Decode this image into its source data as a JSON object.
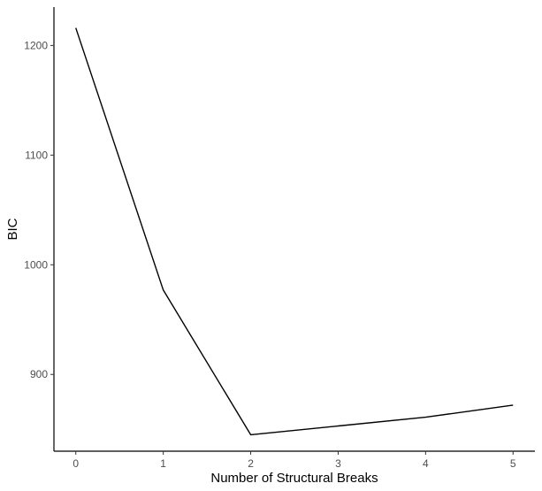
{
  "chart_data": {
    "type": "line",
    "title": "",
    "xlabel": "Number of Structural Breaks",
    "ylabel": "BIC",
    "x": [
      0,
      1,
      2,
      3,
      4,
      5
    ],
    "x_ticks": [
      "0",
      "1",
      "2",
      "3",
      "4",
      "5"
    ],
    "y_ticks": [
      900,
      1000,
      1100,
      1200
    ],
    "y_tick_labels": [
      "900",
      "1000",
      "1100",
      "1200"
    ],
    "xlim": [
      -0.25,
      5.25
    ],
    "ylim": [
      830,
      1235
    ],
    "grid": false,
    "series": [
      {
        "values": [
          1216,
          977,
          845,
          853,
          861,
          872
        ],
        "color": "#000000"
      }
    ]
  }
}
